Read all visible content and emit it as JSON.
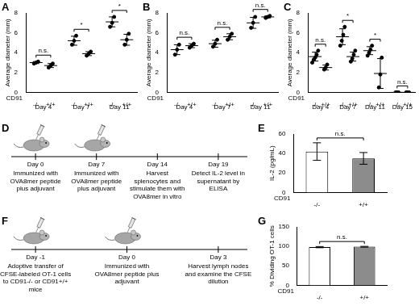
{
  "chart_data": [
    {
      "panel_label": "A",
      "type": "scatter",
      "color": "#000000",
      "marker": "circle",
      "y_label": "Average diameter (mm)",
      "ylim": [
        0,
        8
      ],
      "yticks": [
        0,
        2,
        4,
        6,
        8
      ],
      "group_label": "CD91",
      "groups": [
        "Day 4",
        "Day 7",
        "Day 11"
      ],
      "categories": [
        "-/-",
        "+/+",
        "-/-",
        "+/+",
        "-/-",
        "+/+"
      ],
      "points": [
        [
          2.9,
          3.0,
          3.1
        ],
        [
          2.5,
          2.7,
          2.9
        ],
        [
          4.8,
          5.2,
          5.7
        ],
        [
          3.7,
          3.9,
          4.1
        ],
        [
          6.6,
          7.0,
          7.6
        ],
        [
          4.8,
          5.3,
          5.9
        ]
      ],
      "means": [
        3.0,
        2.7,
        5.2,
        3.9,
        7.1,
        5.3
      ],
      "errors": [
        0.1,
        0.2,
        0.45,
        0.2,
        0.5,
        0.55
      ],
      "comparisons": [
        "n.s.",
        "*",
        "*"
      ]
    },
    {
      "panel_label": "B",
      "type": "scatter",
      "color": "#000000",
      "marker": "circle",
      "y_label": "Average diameter (mm)",
      "ylim": [
        0,
        8
      ],
      "yticks": [
        0,
        2,
        4,
        6,
        8
      ],
      "group_label": "CD91",
      "groups": [
        "Day 4",
        "Day 7",
        "Day 11"
      ],
      "categories": [
        "-/-",
        "+/+",
        "-/-",
        "+/+",
        "-/-",
        "+/+"
      ],
      "points": [
        [
          3.8,
          4.3,
          4.8
        ],
        [
          4.5,
          4.7,
          4.9
        ],
        [
          4.6,
          4.9,
          5.3
        ],
        [
          5.3,
          5.6,
          5.9
        ],
        [
          6.5,
          7.0,
          7.6
        ],
        [
          7.5,
          7.6,
          7.7
        ]
      ],
      "means": [
        4.3,
        4.7,
        4.9,
        5.6,
        7.0,
        7.6
      ],
      "errors": [
        0.5,
        0.2,
        0.35,
        0.3,
        0.55,
        0.1
      ],
      "comparisons": [
        "n.s.",
        "n.s.",
        "n.s."
      ]
    },
    {
      "panel_label": "C",
      "type": "scatter",
      "color": "#000000",
      "marker": "circle",
      "y_label": "Average diameter (mm)",
      "ylim": [
        0,
        8
      ],
      "yticks": [
        0,
        2,
        4,
        6,
        8
      ],
      "group_label": "CD91",
      "groups": [
        "Day 4",
        "Day 7",
        "Day 11",
        "Day 15"
      ],
      "categories": [
        "-/-",
        "+/+",
        "-/-",
        "+/+",
        "-/-",
        "+/+",
        "-/-",
        "+/+"
      ],
      "points": [
        [
          3.0,
          3.3,
          3.5,
          3.8,
          4.2
        ],
        [
          2.3,
          2.5,
          2.8
        ],
        [
          4.7,
          5.2,
          5.8,
          6.6
        ],
        [
          3.1,
          3.4,
          3.8,
          4.2
        ],
        [
          3.7,
          4.0,
          4.3,
          4.7
        ],
        [
          0.5,
          1.8,
          3.5
        ],
        [
          0,
          0,
          0
        ],
        [
          0,
          0,
          0
        ]
      ],
      "means": [
        3.6,
        2.5,
        5.6,
        3.6,
        4.2,
        1.9,
        0,
        0
      ],
      "errors": [
        0.45,
        0.25,
        0.8,
        0.45,
        0.4,
        1.5,
        0,
        0
      ],
      "comparisons": [
        "n.s.",
        "*",
        "*",
        "n.s."
      ]
    },
    {
      "panel_label": "E",
      "type": "bar",
      "y_label": "IL-2 (pg/mL)",
      "ylim": [
        0,
        60
      ],
      "yticks": [
        0,
        20,
        40,
        60
      ],
      "group_label": "CD91",
      "categories": [
        "-/-",
        "+/+"
      ],
      "values": [
        42,
        35
      ],
      "errors": [
        9,
        6
      ],
      "colors": [
        "#ffffff",
        "#8c8c8c"
      ],
      "comparisons": [
        "n.s."
      ]
    },
    {
      "panel_label": "G",
      "type": "bar",
      "y_label": "% Dividing OT-1 cells",
      "ylim": [
        0,
        150
      ],
      "yticks": [
        0,
        50,
        100,
        150
      ],
      "group_label": "CD91",
      "categories": [
        "-/-",
        "+/+"
      ],
      "values": [
        98,
        99
      ],
      "errors": [
        1.5,
        1
      ],
      "colors": [
        "#ffffff",
        "#8c8c8c"
      ],
      "comparisons": [
        "n.s."
      ]
    }
  ],
  "diagrams": [
    {
      "panel_label": "D",
      "events": [
        {
          "day": "Day 0",
          "text": "Immunized with OVA8mer peptide plus adjuvant",
          "mouse": true
        },
        {
          "day": "Day 7",
          "text": "Immunized with OVA8mer peptide plus adjuvant",
          "mouse": true
        },
        {
          "day": "Day 14",
          "text": "Harvest splenocytes and stimulate them with OVA8mer in vitro",
          "mouse": false
        },
        {
          "day": "Day 19",
          "text": "Detect IL-2 level in supernatant by ELISA",
          "mouse": false
        }
      ]
    },
    {
      "panel_label": "F",
      "events": [
        {
          "day": "Day -1",
          "text": "Adoptive transfer of CFSE-labeled OT-1 cells to CD91-/- or CD91+/+ mice",
          "mouse": true
        },
        {
          "day": "Day 0",
          "text": "Immunized with OVA8mer peptide plus adjuvant",
          "mouse": true
        },
        {
          "day": "Day 3",
          "text": "Harvest lymph nodes and examine the CFSE dilution",
          "mouse": false
        }
      ]
    }
  ]
}
